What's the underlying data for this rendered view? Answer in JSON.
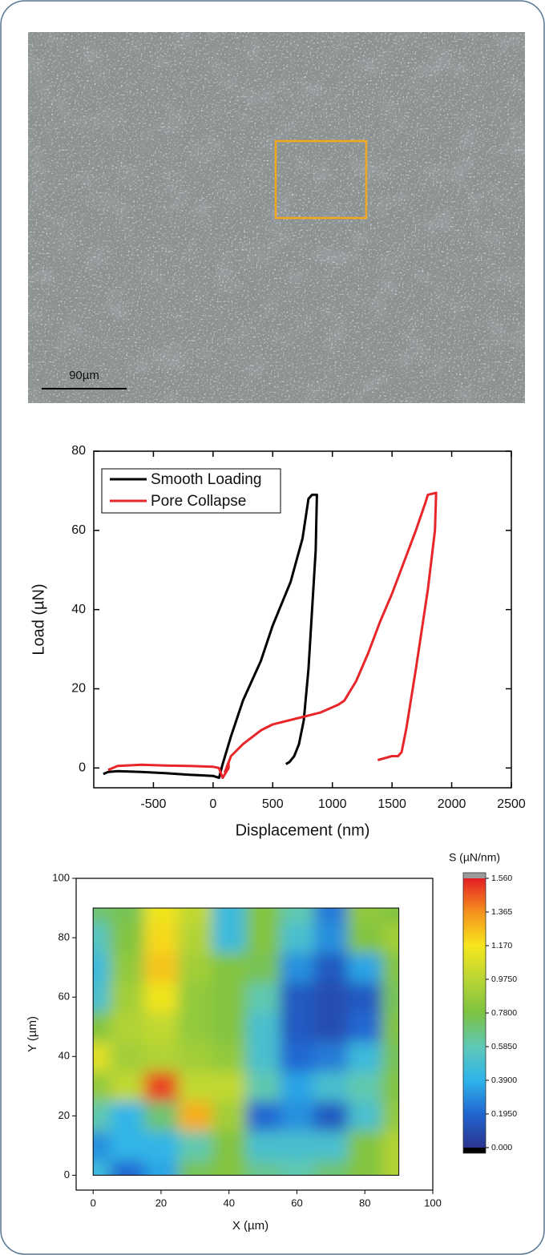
{
  "micrograph": {
    "scale_label": "90µm"
  },
  "chart_data": [
    {
      "type": "line",
      "xlabel": "Displacement (nm)",
      "ylabel": "Load (µN)",
      "xlim": [
        -1000,
        2500
      ],
      "ylim": [
        -5,
        80
      ],
      "xticks": [
        -500,
        0,
        500,
        1000,
        1500,
        2000,
        2500
      ],
      "yticks": [
        0,
        20,
        40,
        60,
        80
      ],
      "legend": "upper-left",
      "series": [
        {
          "name": "Smooth Loading",
          "color": "#000000",
          "x": [
            -920,
            -880,
            -800,
            -600,
            -400,
            -200,
            0,
            50,
            80,
            150,
            250,
            400,
            500,
            650,
            750,
            800,
            830,
            870,
            860,
            830,
            800,
            760,
            720,
            680,
            640,
            610
          ],
          "values": [
            -1.5,
            -1,
            -0.8,
            -1,
            -1.3,
            -1.7,
            -2,
            -2.5,
            1,
            8,
            17,
            27,
            36,
            47,
            58,
            68,
            69,
            69,
            55,
            40,
            25,
            12,
            6,
            3,
            1.5,
            1
          ]
        },
        {
          "name": "Pore Collapse",
          "color": "#e8262a",
          "x": [
            -880,
            -800,
            -600,
            -400,
            -200,
            0,
            50,
            80,
            130,
            130,
            100,
            150,
            250,
            400,
            500,
            700,
            900,
            1050,
            1100,
            1200,
            1300,
            1400,
            1500,
            1600,
            1700,
            1780,
            1800,
            1870,
            1860,
            1800,
            1700,
            1620,
            1580,
            1550,
            1500,
            1380
          ],
          "values": [
            -0.5,
            0.5,
            0.8,
            0.6,
            0.5,
            0.3,
            0,
            -2.5,
            0,
            1.5,
            -1,
            3,
            6,
            9.5,
            11,
            12.5,
            14,
            16,
            17,
            22,
            29,
            37,
            44,
            52,
            60,
            67,
            69,
            69.5,
            60,
            45,
            25,
            10,
            4,
            3,
            3,
            2
          ]
        }
      ]
    },
    {
      "type": "contour",
      "xlabel": "X (µm)",
      "ylabel": "Y (µm)",
      "xlim": [
        -5,
        100
      ],
      "ylim": [
        -5,
        100
      ],
      "xticks": [
        0,
        20,
        40,
        60,
        80,
        100
      ],
      "yticks": [
        0,
        20,
        40,
        60,
        80,
        100
      ],
      "x": [
        0,
        10,
        20,
        30,
        40,
        50,
        60,
        70,
        80,
        90
      ],
      "y": [
        0,
        10,
        20,
        30,
        40,
        50,
        60,
        70,
        80,
        90
      ],
      "z": [
        [
          0.45,
          0.2,
          0.35,
          0.75,
          0.8,
          0.65,
          0.6,
          0.7,
          0.8,
          0.95
        ],
        [
          0.3,
          0.4,
          0.4,
          0.6,
          0.8,
          0.5,
          0.5,
          0.5,
          0.8,
          0.95
        ],
        [
          0.6,
          0.4,
          0.7,
          1.3,
          0.9,
          0.2,
          0.3,
          0.15,
          0.5,
          0.85
        ],
        [
          0.85,
          1.0,
          1.5,
          1.0,
          1.0,
          0.6,
          0.35,
          0.5,
          0.6,
          0.8
        ],
        [
          1.1,
          0.9,
          0.95,
          0.9,
          0.85,
          0.5,
          0.2,
          0.25,
          0.45,
          0.75
        ],
        [
          0.8,
          0.95,
          1.0,
          0.85,
          0.8,
          0.5,
          0.15,
          0.1,
          0.2,
          0.8
        ],
        [
          0.5,
          0.9,
          1.15,
          0.85,
          0.8,
          0.6,
          0.15,
          0.1,
          0.15,
          0.75
        ],
        [
          0.45,
          0.85,
          1.25,
          0.9,
          0.8,
          0.75,
          0.3,
          0.15,
          0.35,
          0.8
        ],
        [
          0.55,
          0.8,
          1.2,
          0.95,
          0.45,
          0.8,
          0.5,
          0.3,
          0.8,
          0.9
        ],
        [
          0.7,
          0.75,
          1.15,
          1.0,
          0.45,
          0.8,
          0.6,
          0.25,
          0.85,
          0.8
        ]
      ],
      "colorbar": {
        "title": "S (µN/nm)",
        "zlim": [
          0,
          1.56
        ],
        "ticks": [
          {
            "value": 0,
            "label": "0.000"
          },
          {
            "value": 0.195,
            "label": "0.1950"
          },
          {
            "value": 0.39,
            "label": "0.3900"
          },
          {
            "value": 0.585,
            "label": "0.5850"
          },
          {
            "value": 0.78,
            "label": "0.7800"
          },
          {
            "value": 0.975,
            "label": "0.9750"
          },
          {
            "value": 1.17,
            "label": "1.170"
          },
          {
            "value": 1.365,
            "label": "1.365"
          },
          {
            "value": 1.56,
            "label": "1.560"
          }
        ],
        "colors": [
          "#2a3590",
          "#2165d0",
          "#2eb4ea",
          "#5fc8b8",
          "#7cc242",
          "#b9d634",
          "#f6e61c",
          "#f6921e",
          "#e41e24"
        ]
      }
    }
  ]
}
